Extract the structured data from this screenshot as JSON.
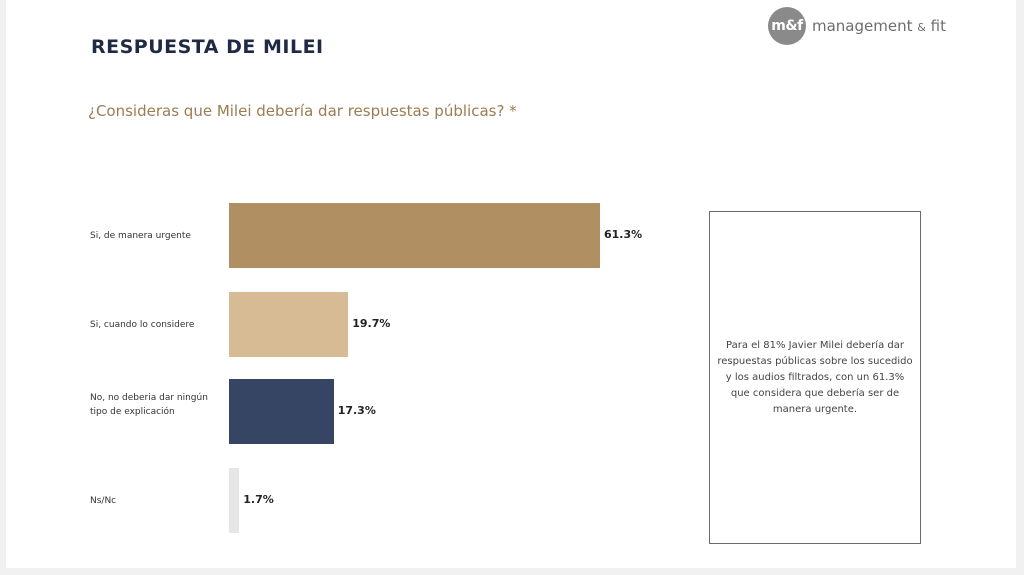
{
  "header": {
    "title": "RESPUESTA DE MILEI",
    "question": "¿Consideras que Milei debería dar respuestas públicas? *"
  },
  "logo": {
    "mark": "m&f",
    "name_part1": "management",
    "name_amp": "&",
    "name_part2": "fit"
  },
  "note": {
    "text": "Para el 81% Javier Milei debería dar respuestas públicas sobre los sucedido y los audios filtrados, con un 61.3% que considera que debería ser de manera urgente."
  },
  "colors": {
    "bar_colors": [
      "#b08f63",
      "#d6bb94",
      "#364564",
      "#e6e6e6"
    ],
    "title": "#1f2a44",
    "question": "#9a7d52"
  },
  "chart_data": {
    "type": "bar",
    "orientation": "horizontal",
    "categories": [
      "Si, de manera urgente",
      "Si, cuando lo considere",
      "No, no deberia dar ningún tipo de explicación",
      "Ns/Nc"
    ],
    "values": [
      61.3,
      19.7,
      17.3,
      1.7
    ],
    "value_labels": [
      "61.3%",
      "19.7%",
      "17.3%",
      "1.7%"
    ],
    "xlim": [
      0,
      61.3
    ],
    "grid": false,
    "legend": "none"
  }
}
